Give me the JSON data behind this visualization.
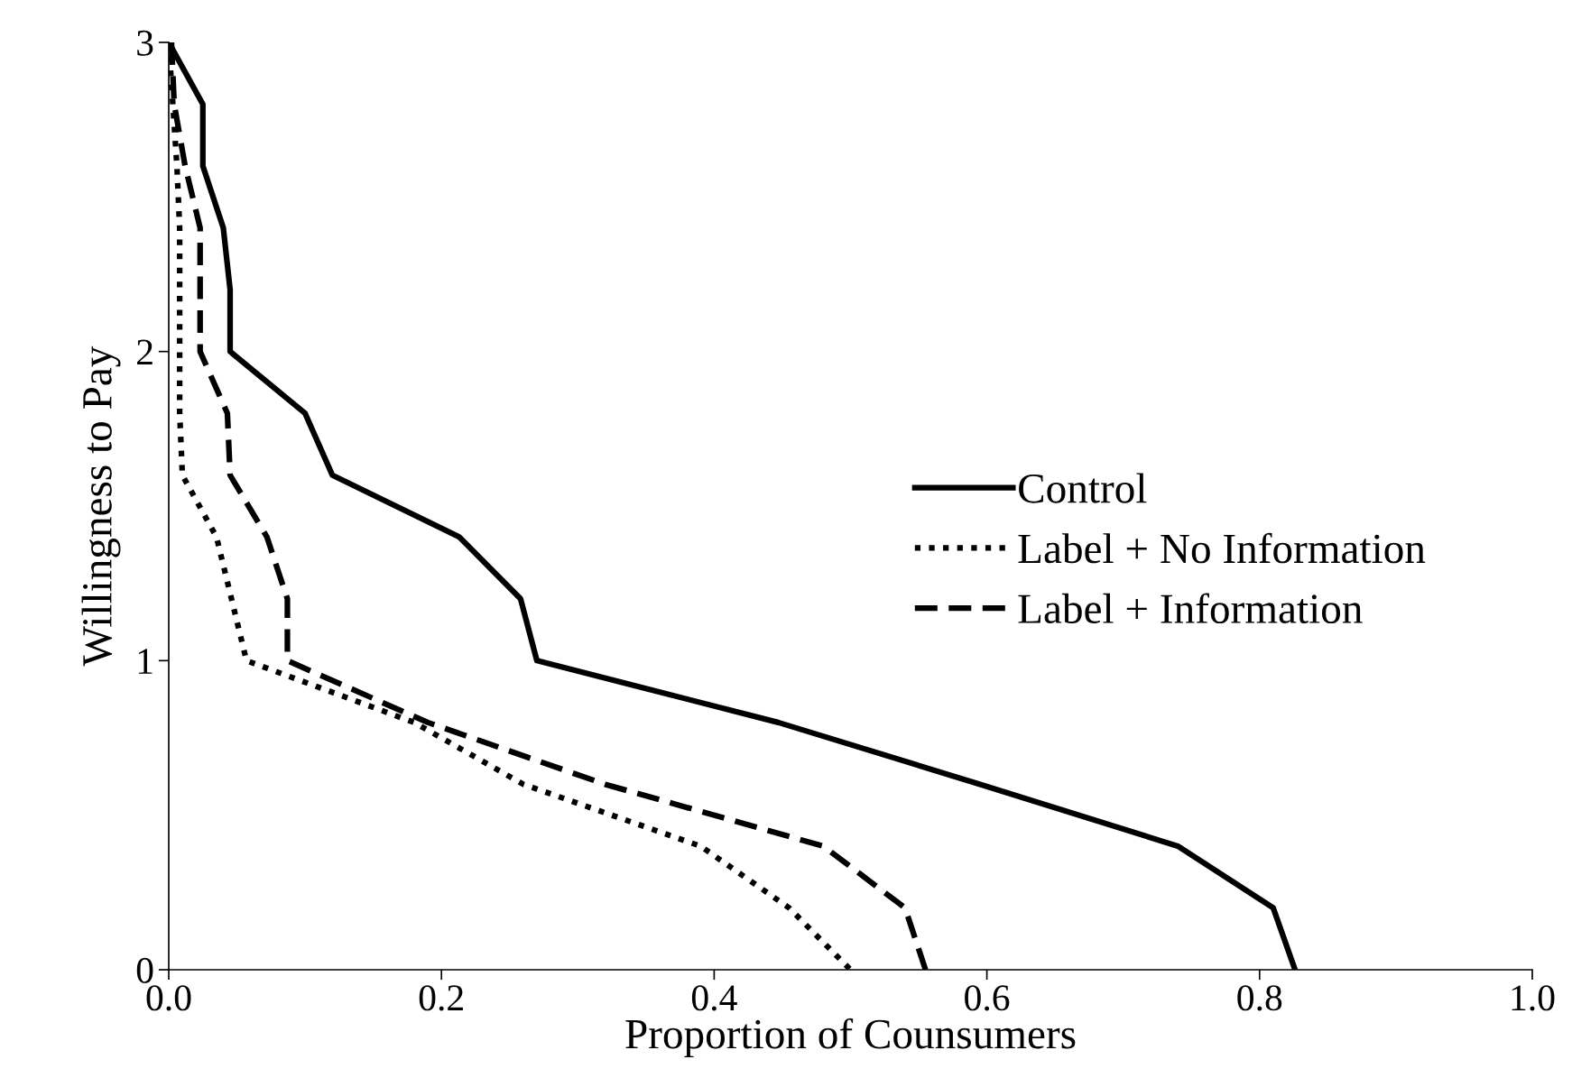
{
  "chart_data": {
    "type": "line",
    "xlabel": "Proportion of Counsumers",
    "ylabel": "Willingness to Pay",
    "xlim": [
      0,
      1
    ],
    "xticks": [
      {
        "value": 0,
        "label": "0.0"
      },
      0.2,
      0.4,
      0.6,
      0.8,
      {
        "value": 1,
        "label": "1.0"
      }
    ],
    "ylim": [
      0,
      3
    ],
    "yticks": [
      0,
      1,
      2,
      3
    ],
    "grid": false,
    "legend": "right",
    "marker": "none",
    "series": [
      {
        "name": "Control",
        "color": "#000000",
        "line_style": "solid",
        "x": [
          0.0,
          0.025,
          0.025,
          0.04,
          0.045,
          0.045,
          0.1,
          0.12,
          0.213,
          0.258,
          0.27,
          0.447,
          0.595,
          0.74,
          0.81,
          0.826
        ],
        "values": [
          3,
          2.8,
          2.6,
          2.4,
          2.2,
          2,
          1.8,
          1.6,
          1.4,
          1.2,
          1,
          0.8,
          0.6,
          0.4,
          0.2,
          0
        ]
      },
      {
        "name": "Label + No Information",
        "color": "#000000",
        "line_style": "dotted",
        "x": [
          0.0,
          0.003,
          0.006,
          0.008,
          0.008,
          0.008,
          0.008,
          0.01,
          0.035,
          0.046,
          0.057,
          0.18,
          0.26,
          0.39,
          0.455,
          0.5
        ],
        "values": [
          3,
          2.8,
          2.6,
          2.4,
          2.2,
          2,
          1.8,
          1.6,
          1.4,
          1.2,
          1,
          0.8,
          0.6,
          0.4,
          0.2,
          0
        ]
      },
      {
        "name": "Label + Information",
        "color": "#000000",
        "line_style": "dashed",
        "x": [
          0.002,
          0.004,
          0.012,
          0.023,
          0.023,
          0.023,
          0.043,
          0.045,
          0.072,
          0.087,
          0.087,
          0.19,
          0.32,
          0.48,
          0.54,
          0.555
        ],
        "values": [
          3,
          2.8,
          2.6,
          2.4,
          2.2,
          2,
          1.8,
          1.6,
          1.4,
          1.2,
          1,
          0.8,
          0.6,
          0.4,
          0.2,
          0
        ]
      }
    ]
  }
}
